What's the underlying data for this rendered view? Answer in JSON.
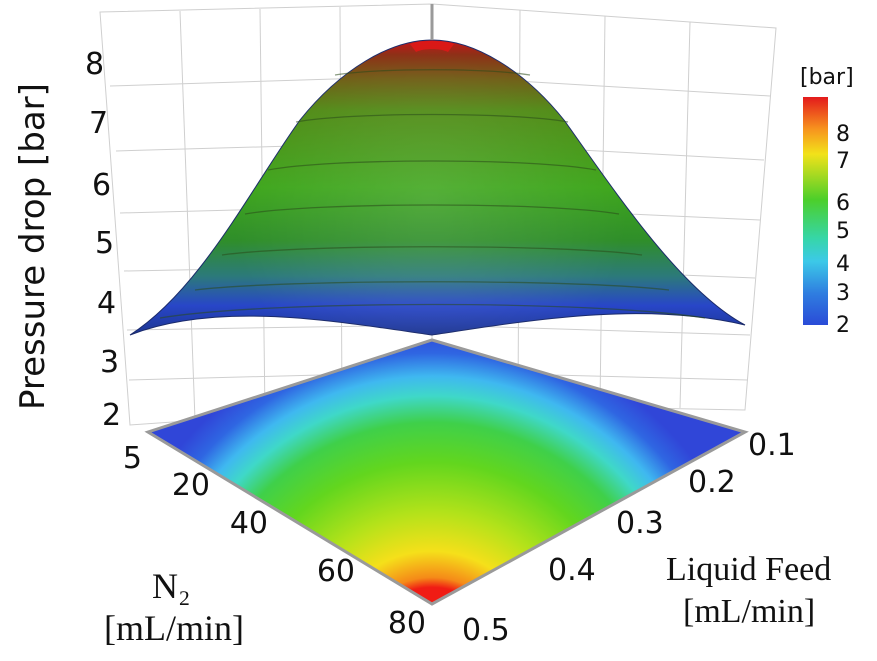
{
  "chart_data": {
    "type": "surface3d",
    "zlabel": "Pressure drop [bar]",
    "xlabel_line1": "N₂",
    "xlabel_line2": "[mL/min]",
    "ylabel_line1": "Liquid Feed",
    "ylabel_line2": "[mL/min]",
    "x_name": "N₂ [mL/min]",
    "y_name": "Liquid Feed [mL/min]",
    "z_ticks": [
      "2",
      "3",
      "4",
      "5",
      "6",
      "7",
      "8"
    ],
    "x_ticks": [
      "5",
      "20",
      "40",
      "60",
      "80"
    ],
    "x_tick_values": [
      5,
      20,
      40,
      60,
      80
    ],
    "y_ticks": [
      "0.1",
      "0.2",
      "0.3",
      "0.4",
      "0.5"
    ],
    "y_tick_values": [
      0.1,
      0.2,
      0.3,
      0.4,
      0.5
    ],
    "zlim": [
      1.5,
      8.3
    ],
    "xlim": [
      5,
      80
    ],
    "ylim": [
      0.1,
      0.5
    ],
    "colorbar": {
      "title": "[bar]",
      "ticks": [
        "8",
        "7",
        "6",
        "5",
        "4",
        "3",
        "2"
      ],
      "range": [
        2,
        8.5
      ]
    },
    "surface_samples": [
      {
        "n2": 5,
        "liquid_feed": 0.1,
        "pressure_drop": 2.1
      },
      {
        "n2": 80,
        "liquid_feed": 0.1,
        "pressure_drop": 3.4
      },
      {
        "n2": 5,
        "liquid_feed": 0.5,
        "pressure_drop": 3.4
      },
      {
        "n2": 80,
        "liquid_feed": 0.5,
        "pressure_drop": 8.2
      },
      {
        "n2": 40,
        "liquid_feed": 0.3,
        "pressure_drop": 5.4
      }
    ],
    "colors": [
      "#2a4bd7",
      "#3cc9e8",
      "#4ccf2a",
      "#39a81c",
      "#f2d41a",
      "#f7931e",
      "#e31a1c"
    ]
  }
}
